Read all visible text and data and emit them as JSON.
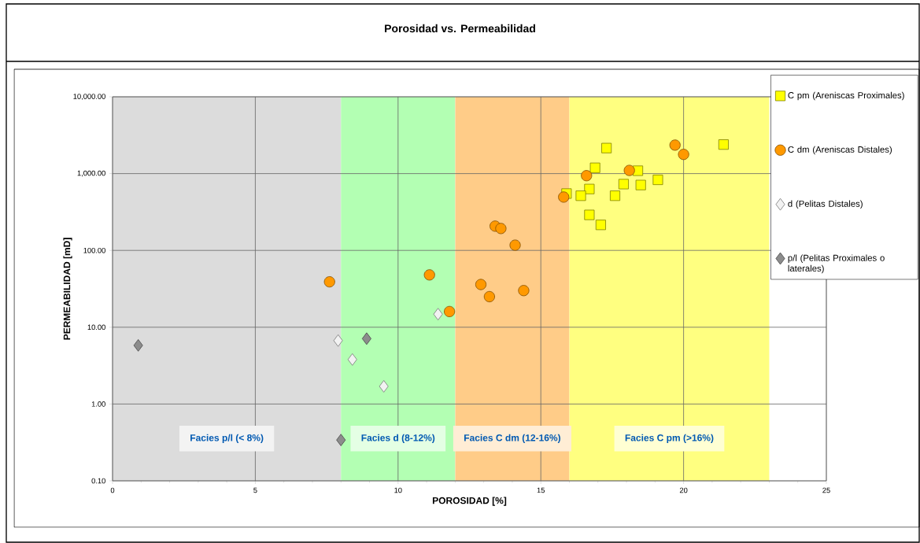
{
  "chart_data": {
    "type": "scatter",
    "title": "Porosidad vs. Permeabilidad",
    "xlabel": "POROSIDAD  [%]",
    "ylabel": "PERMEABILIDAD  [mD]",
    "xlim": [
      0,
      25
    ],
    "xticks": [
      0,
      5,
      10,
      15,
      20,
      25
    ],
    "ylim": [
      0.1,
      10000
    ],
    "yticks": [
      {
        "value": 0.1,
        "label": "0.10"
      },
      {
        "value": 1,
        "label": "1.00"
      },
      {
        "value": 10,
        "label": "10.00"
      },
      {
        "value": 100,
        "label": "100.00"
      },
      {
        "value": 1000,
        "label": "1,000.00"
      },
      {
        "value": 10000,
        "label": "10,000.00"
      }
    ],
    "log": "y",
    "grid": true,
    "legend": "top right",
    "bands": [
      {
        "axis": "x",
        "from": 0,
        "to": 8,
        "label": "Facies p/l (< 8%)",
        "color": "#dcdcdc"
      },
      {
        "axis": "x",
        "from": 8,
        "to": 12,
        "label": "Facies d (8-12%)",
        "color": "#b3ffb3"
      },
      {
        "axis": "x",
        "from": 12,
        "to": 16,
        "label": "Facies C dm (12-16%)",
        "color": "#ffcc88"
      },
      {
        "axis": "x",
        "from": 16,
        "to": 23,
        "label": "Facies C pm (>16%)",
        "color": "#ffff80"
      }
    ],
    "series": [
      {
        "name": "C pm (Areniscas Proximales)",
        "color": "#ffff00",
        "marker": "square",
        "x": [
          17.3,
          21.4,
          16.9,
          18.4,
          19.1,
          17.9,
          18.5,
          16.7,
          15.9,
          16.4,
          17.6,
          16.7,
          17.1
        ],
        "values": [
          2150,
          2390,
          1190,
          1090,
          830,
          730,
          710,
          630,
          550,
          515,
          515,
          290,
          215
        ]
      },
      {
        "name": "C dm (Areniscas Distales)",
        "color": "#ff9900",
        "marker": "circle",
        "x": [
          19.7,
          20.0,
          18.1,
          16.6,
          15.8,
          13.4,
          13.6,
          14.1,
          12.9,
          13.2,
          14.4,
          7.6,
          11.1,
          11.8
        ],
        "values": [
          2350,
          1780,
          1100,
          940,
          495,
          207,
          193,
          117,
          36,
          25,
          30,
          39,
          48,
          16
        ]
      },
      {
        "name": "d (Pelitas Distales)",
        "color": "#f2f2f2",
        "marker": "diamond",
        "x": [
          7.9,
          8.4,
          9.5,
          11.4
        ],
        "values": [
          6.7,
          3.8,
          1.7,
          14.8
        ]
      },
      {
        "name": "p/l (Pelitas Proximales o laterales)",
        "color": "#8c8c8c",
        "marker": "diamond",
        "x": [
          0.9,
          8.9,
          8.0
        ],
        "values": [
          5.8,
          7.1,
          0.34
        ]
      }
    ]
  }
}
